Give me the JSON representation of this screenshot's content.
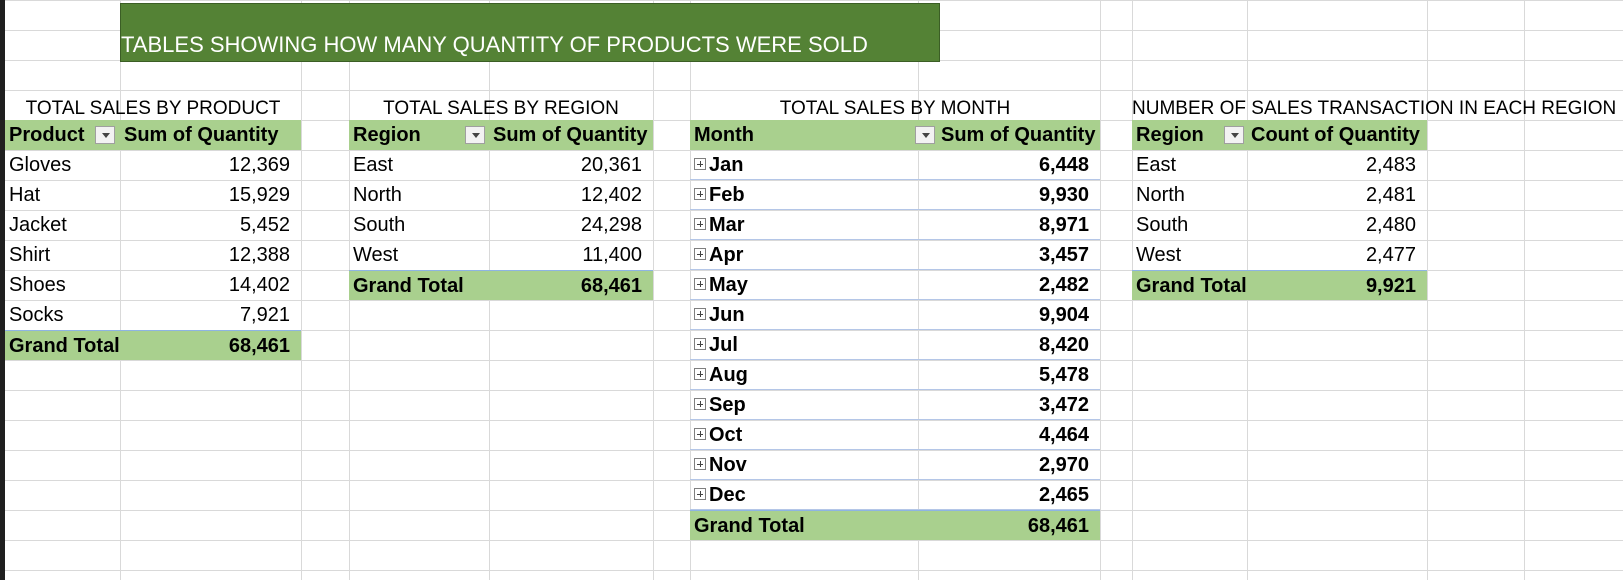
{
  "title": "TABLES SHOWING HOW MANY QUANTITY OF PRODUCTS WERE SOLD",
  "product_table": {
    "caption": "TOTAL SALES BY PRODUCT",
    "headers": [
      "Product",
      "Sum of Quantity"
    ],
    "rows": [
      {
        "label": "Gloves",
        "value": "12,369"
      },
      {
        "label": "Hat",
        "value": "15,929"
      },
      {
        "label": "Jacket",
        "value": "5,452"
      },
      {
        "label": "Shirt",
        "value": "12,388"
      },
      {
        "label": "Shoes",
        "value": "14,402"
      },
      {
        "label": "Socks",
        "value": "7,921"
      }
    ],
    "total": {
      "label": "Grand Total",
      "value": "68,461"
    }
  },
  "region_table": {
    "caption": "TOTAL SALES BY REGION",
    "headers": [
      "Region",
      "Sum of Quantity"
    ],
    "rows": [
      {
        "label": "East",
        "value": "20,361"
      },
      {
        "label": "North",
        "value": "12,402"
      },
      {
        "label": "South",
        "value": "24,298"
      },
      {
        "label": "West",
        "value": "11,400"
      }
    ],
    "total": {
      "label": "Grand Total",
      "value": "68,461"
    }
  },
  "month_table": {
    "caption": "TOTAL SALES BY MONTH",
    "headers": [
      "Month",
      "Sum of Quantity"
    ],
    "rows": [
      {
        "label": "Jan",
        "value": "6,448"
      },
      {
        "label": "Feb",
        "value": "9,930"
      },
      {
        "label": "Mar",
        "value": "8,971"
      },
      {
        "label": "Apr",
        "value": "3,457"
      },
      {
        "label": "May",
        "value": "2,482"
      },
      {
        "label": "Jun",
        "value": "9,904"
      },
      {
        "label": "Jul",
        "value": "8,420"
      },
      {
        "label": "Aug",
        "value": "5,478"
      },
      {
        "label": "Sep",
        "value": "3,472"
      },
      {
        "label": "Oct",
        "value": "4,464"
      },
      {
        "label": "Nov",
        "value": "2,970"
      },
      {
        "label": "Dec",
        "value": "2,465"
      }
    ],
    "total": {
      "label": "Grand Total",
      "value": "68,461"
    }
  },
  "count_table": {
    "caption": "NUMBER OF SALES TRANSACTION IN EACH REGION",
    "headers": [
      "Region",
      "Count of Quantity"
    ],
    "rows": [
      {
        "label": "East",
        "value": "2,483"
      },
      {
        "label": "North",
        "value": "2,481"
      },
      {
        "label": "South",
        "value": "2,480"
      },
      {
        "label": "West",
        "value": "2,477"
      }
    ],
    "total": {
      "label": "Grand Total",
      "value": "9,921"
    }
  },
  "colors": {
    "banner": "#548235",
    "header_fill": "#a9d08e",
    "gridline": "#d9d9d9",
    "row_separator": "#b4c6e7"
  },
  "icons": {
    "filter": "filter-dropdown-icon",
    "expand": "expand-plus-icon"
  }
}
